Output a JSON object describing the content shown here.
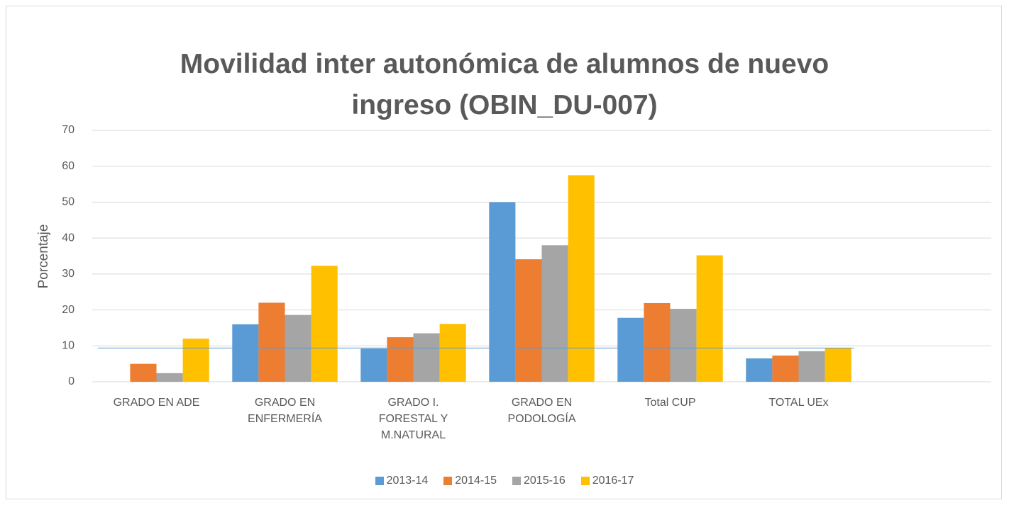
{
  "chart_data": {
    "type": "bar",
    "title": "Movilidad inter autonómica de alumnos de nuevo ingreso (OBIN_DU-007)",
    "y_label": "Porcentaje",
    "categories": [
      "GRADO EN ADE",
      "GRADO EN ENFERMERÍA",
      "GRADO I. FORESTAL Y M.NATURAL",
      "GRADO EN PODOLOGÍA",
      "Total CUP",
      "TOTAL UEx",
      null
    ],
    "series": [
      {
        "name": "2013-14",
        "color": "#5b9bd5",
        "values": [
          0,
          16,
          9.2,
          50,
          17.8,
          6.5,
          null
        ]
      },
      {
        "name": "2014-15",
        "color": "#ed7d31",
        "values": [
          5,
          22,
          12.4,
          34.1,
          21.9,
          7.3,
          null
        ]
      },
      {
        "name": "2015-16",
        "color": "#a5a5a5",
        "values": [
          2.4,
          18.6,
          13.5,
          38,
          20.3,
          8.5,
          null
        ]
      },
      {
        "name": "2016-17",
        "color": "#ffc000",
        "values": [
          12,
          32.3,
          16.1,
          57.5,
          35.2,
          9.4,
          null
        ]
      }
    ],
    "reference_line": {
      "value": 9.4,
      "color": "#5b9bd5"
    },
    "ylim": [
      0,
      70
    ],
    "yticks": [
      0,
      10,
      20,
      30,
      40,
      50,
      60,
      70
    ],
    "grid": true,
    "legend": "bottom"
  }
}
